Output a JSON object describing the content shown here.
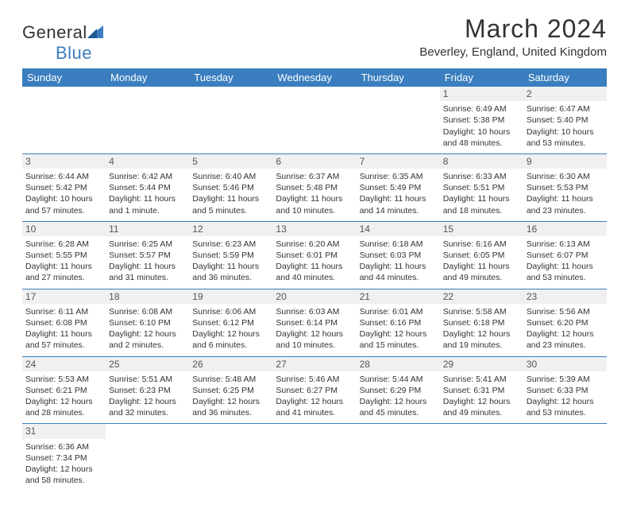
{
  "logo": {
    "textDark": "General",
    "textBlue": "Blue"
  },
  "title": "March 2024",
  "subtitle": "Beverley, England, United Kingdom",
  "colors": {
    "headerBar": "#3a7ebf",
    "headerText": "#ffffff",
    "dayNumBg": "#f0f0f0",
    "dayNumText": "#555555",
    "cellBorder": "#3a7ebf",
    "bodyText": "#333333",
    "logoBlue": "#3a7ebf",
    "logoDark": "#333333"
  },
  "typography": {
    "titleSize": 32,
    "subtitleSize": 15,
    "headerSize": 13,
    "cellSize": 10.5,
    "logoSize": 22
  },
  "dayHeaders": [
    "Sunday",
    "Monday",
    "Tuesday",
    "Wednesday",
    "Thursday",
    "Friday",
    "Saturday"
  ],
  "weeks": [
    [
      {
        "n": "",
        "sunrise": "",
        "sunset": "",
        "daylight": ""
      },
      {
        "n": "",
        "sunrise": "",
        "sunset": "",
        "daylight": ""
      },
      {
        "n": "",
        "sunrise": "",
        "sunset": "",
        "daylight": ""
      },
      {
        "n": "",
        "sunrise": "",
        "sunset": "",
        "daylight": ""
      },
      {
        "n": "",
        "sunrise": "",
        "sunset": "",
        "daylight": ""
      },
      {
        "n": "1",
        "sunrise": "Sunrise: 6:49 AM",
        "sunset": "Sunset: 5:38 PM",
        "daylight": "Daylight: 10 hours and 48 minutes."
      },
      {
        "n": "2",
        "sunrise": "Sunrise: 6:47 AM",
        "sunset": "Sunset: 5:40 PM",
        "daylight": "Daylight: 10 hours and 53 minutes."
      }
    ],
    [
      {
        "n": "3",
        "sunrise": "Sunrise: 6:44 AM",
        "sunset": "Sunset: 5:42 PM",
        "daylight": "Daylight: 10 hours and 57 minutes."
      },
      {
        "n": "4",
        "sunrise": "Sunrise: 6:42 AM",
        "sunset": "Sunset: 5:44 PM",
        "daylight": "Daylight: 11 hours and 1 minute."
      },
      {
        "n": "5",
        "sunrise": "Sunrise: 6:40 AM",
        "sunset": "Sunset: 5:46 PM",
        "daylight": "Daylight: 11 hours and 5 minutes."
      },
      {
        "n": "6",
        "sunrise": "Sunrise: 6:37 AM",
        "sunset": "Sunset: 5:48 PM",
        "daylight": "Daylight: 11 hours and 10 minutes."
      },
      {
        "n": "7",
        "sunrise": "Sunrise: 6:35 AM",
        "sunset": "Sunset: 5:49 PM",
        "daylight": "Daylight: 11 hours and 14 minutes."
      },
      {
        "n": "8",
        "sunrise": "Sunrise: 6:33 AM",
        "sunset": "Sunset: 5:51 PM",
        "daylight": "Daylight: 11 hours and 18 minutes."
      },
      {
        "n": "9",
        "sunrise": "Sunrise: 6:30 AM",
        "sunset": "Sunset: 5:53 PM",
        "daylight": "Daylight: 11 hours and 23 minutes."
      }
    ],
    [
      {
        "n": "10",
        "sunrise": "Sunrise: 6:28 AM",
        "sunset": "Sunset: 5:55 PM",
        "daylight": "Daylight: 11 hours and 27 minutes."
      },
      {
        "n": "11",
        "sunrise": "Sunrise: 6:25 AM",
        "sunset": "Sunset: 5:57 PM",
        "daylight": "Daylight: 11 hours and 31 minutes."
      },
      {
        "n": "12",
        "sunrise": "Sunrise: 6:23 AM",
        "sunset": "Sunset: 5:59 PM",
        "daylight": "Daylight: 11 hours and 36 minutes."
      },
      {
        "n": "13",
        "sunrise": "Sunrise: 6:20 AM",
        "sunset": "Sunset: 6:01 PM",
        "daylight": "Daylight: 11 hours and 40 minutes."
      },
      {
        "n": "14",
        "sunrise": "Sunrise: 6:18 AM",
        "sunset": "Sunset: 6:03 PM",
        "daylight": "Daylight: 11 hours and 44 minutes."
      },
      {
        "n": "15",
        "sunrise": "Sunrise: 6:16 AM",
        "sunset": "Sunset: 6:05 PM",
        "daylight": "Daylight: 11 hours and 49 minutes."
      },
      {
        "n": "16",
        "sunrise": "Sunrise: 6:13 AM",
        "sunset": "Sunset: 6:07 PM",
        "daylight": "Daylight: 11 hours and 53 minutes."
      }
    ],
    [
      {
        "n": "17",
        "sunrise": "Sunrise: 6:11 AM",
        "sunset": "Sunset: 6:08 PM",
        "daylight": "Daylight: 11 hours and 57 minutes."
      },
      {
        "n": "18",
        "sunrise": "Sunrise: 6:08 AM",
        "sunset": "Sunset: 6:10 PM",
        "daylight": "Daylight: 12 hours and 2 minutes."
      },
      {
        "n": "19",
        "sunrise": "Sunrise: 6:06 AM",
        "sunset": "Sunset: 6:12 PM",
        "daylight": "Daylight: 12 hours and 6 minutes."
      },
      {
        "n": "20",
        "sunrise": "Sunrise: 6:03 AM",
        "sunset": "Sunset: 6:14 PM",
        "daylight": "Daylight: 12 hours and 10 minutes."
      },
      {
        "n": "21",
        "sunrise": "Sunrise: 6:01 AM",
        "sunset": "Sunset: 6:16 PM",
        "daylight": "Daylight: 12 hours and 15 minutes."
      },
      {
        "n": "22",
        "sunrise": "Sunrise: 5:58 AM",
        "sunset": "Sunset: 6:18 PM",
        "daylight": "Daylight: 12 hours and 19 minutes."
      },
      {
        "n": "23",
        "sunrise": "Sunrise: 5:56 AM",
        "sunset": "Sunset: 6:20 PM",
        "daylight": "Daylight: 12 hours and 23 minutes."
      }
    ],
    [
      {
        "n": "24",
        "sunrise": "Sunrise: 5:53 AM",
        "sunset": "Sunset: 6:21 PM",
        "daylight": "Daylight: 12 hours and 28 minutes."
      },
      {
        "n": "25",
        "sunrise": "Sunrise: 5:51 AM",
        "sunset": "Sunset: 6:23 PM",
        "daylight": "Daylight: 12 hours and 32 minutes."
      },
      {
        "n": "26",
        "sunrise": "Sunrise: 5:48 AM",
        "sunset": "Sunset: 6:25 PM",
        "daylight": "Daylight: 12 hours and 36 minutes."
      },
      {
        "n": "27",
        "sunrise": "Sunrise: 5:46 AM",
        "sunset": "Sunset: 6:27 PM",
        "daylight": "Daylight: 12 hours and 41 minutes."
      },
      {
        "n": "28",
        "sunrise": "Sunrise: 5:44 AM",
        "sunset": "Sunset: 6:29 PM",
        "daylight": "Daylight: 12 hours and 45 minutes."
      },
      {
        "n": "29",
        "sunrise": "Sunrise: 5:41 AM",
        "sunset": "Sunset: 6:31 PM",
        "daylight": "Daylight: 12 hours and 49 minutes."
      },
      {
        "n": "30",
        "sunrise": "Sunrise: 5:39 AM",
        "sunset": "Sunset: 6:33 PM",
        "daylight": "Daylight: 12 hours and 53 minutes."
      }
    ],
    [
      {
        "n": "31",
        "sunrise": "Sunrise: 6:36 AM",
        "sunset": "Sunset: 7:34 PM",
        "daylight": "Daylight: 12 hours and 58 minutes."
      },
      {
        "n": "",
        "sunrise": "",
        "sunset": "",
        "daylight": ""
      },
      {
        "n": "",
        "sunrise": "",
        "sunset": "",
        "daylight": ""
      },
      {
        "n": "",
        "sunrise": "",
        "sunset": "",
        "daylight": ""
      },
      {
        "n": "",
        "sunrise": "",
        "sunset": "",
        "daylight": ""
      },
      {
        "n": "",
        "sunrise": "",
        "sunset": "",
        "daylight": ""
      },
      {
        "n": "",
        "sunrise": "",
        "sunset": "",
        "daylight": ""
      }
    ]
  ]
}
